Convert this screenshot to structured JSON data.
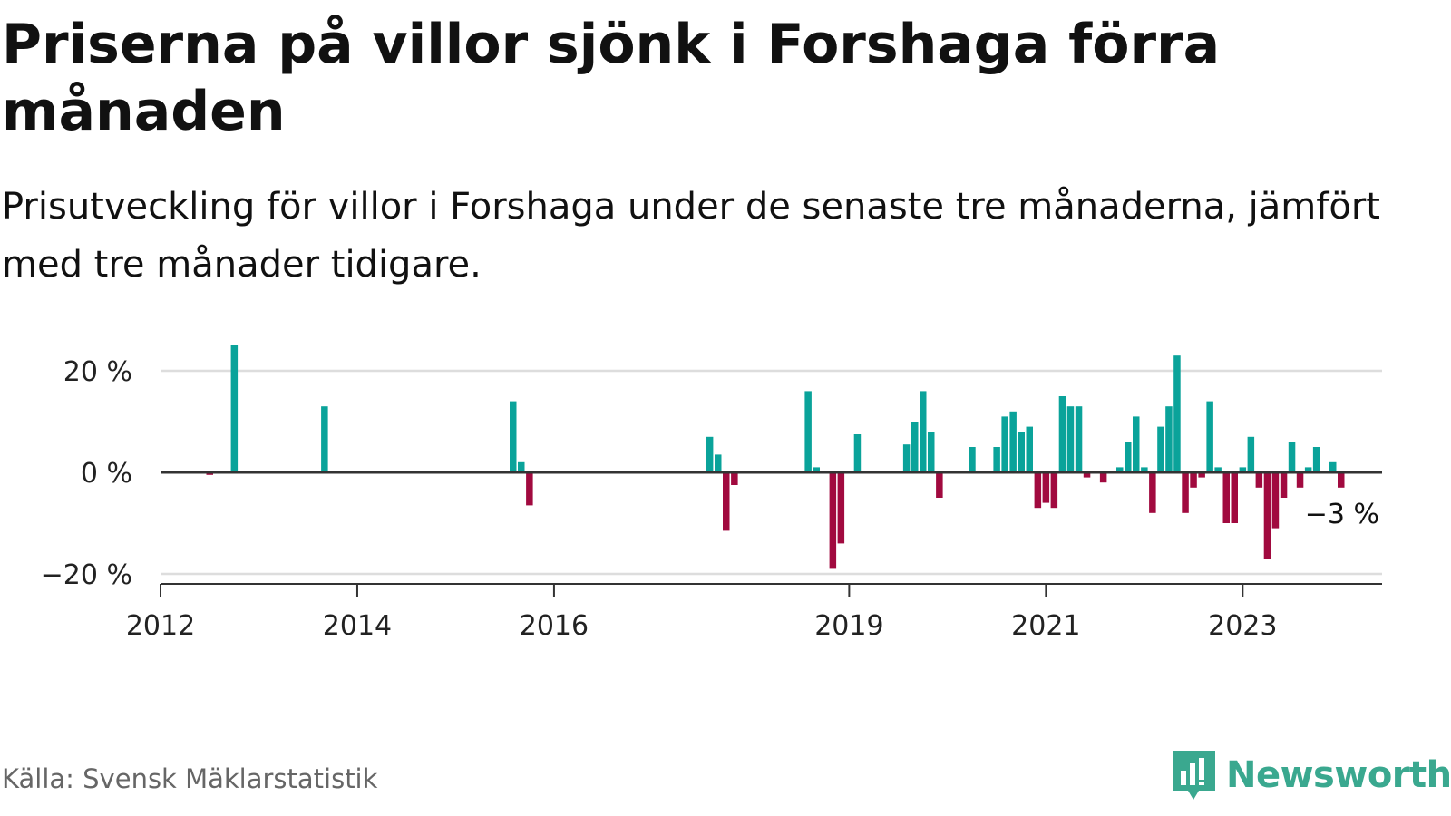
{
  "header": {
    "title": "Priserna på villor sjönk i Forshaga förra månaden",
    "subtitle": "Prisutveckling för villor i Forshaga under de senaste tre månaderna, jämfört med tre månader tidigare."
  },
  "footer": {
    "source": "Källa: Svensk Mäklarstatistik",
    "brand": "Newsworthy"
  },
  "colors": {
    "positive": "#0aa39a",
    "negative": "#a10a3f",
    "baseline": "#333333",
    "grid": "#dddddd",
    "brand": "#3aa88f"
  },
  "chart_data": {
    "type": "bar",
    "ylim": [
      -22,
      24
    ],
    "yticks": [
      {
        "value": 20,
        "label": "20 %"
      },
      {
        "value": 0,
        "label": "0 %"
      },
      {
        "value": -20,
        "label": "−20 %"
      }
    ],
    "xticks": [
      {
        "date": "2012-01",
        "label": "2012"
      },
      {
        "date": "2014-01",
        "label": "2014"
      },
      {
        "date": "2016-01",
        "label": "2016"
      },
      {
        "date": "2019-01",
        "label": "2019"
      },
      {
        "date": "2021-01",
        "label": "2021"
      },
      {
        "date": "2023-01",
        "label": "2023"
      }
    ],
    "x_range": [
      "2012-01",
      "2024-06"
    ],
    "last_value_label": "−3 %",
    "points": [
      {
        "date": "2012-07",
        "value": -0.5
      },
      {
        "date": "2012-10",
        "value": 25
      },
      {
        "date": "2013-09",
        "value": 13
      },
      {
        "date": "2015-08",
        "value": 14
      },
      {
        "date": "2015-09",
        "value": 2
      },
      {
        "date": "2015-10",
        "value": -6.5
      },
      {
        "date": "2017-08",
        "value": 7
      },
      {
        "date": "2017-09",
        "value": 3.5
      },
      {
        "date": "2017-10",
        "value": -11.5
      },
      {
        "date": "2017-11",
        "value": -2.5
      },
      {
        "date": "2018-08",
        "value": 16
      },
      {
        "date": "2018-09",
        "value": 1
      },
      {
        "date": "2018-11",
        "value": -19
      },
      {
        "date": "2018-12",
        "value": -14
      },
      {
        "date": "2019-02",
        "value": 7.5
      },
      {
        "date": "2019-08",
        "value": 5.5
      },
      {
        "date": "2019-09",
        "value": 10
      },
      {
        "date": "2019-10",
        "value": 16
      },
      {
        "date": "2019-11",
        "value": 8
      },
      {
        "date": "2019-12",
        "value": -5
      },
      {
        "date": "2020-04",
        "value": 5
      },
      {
        "date": "2020-07",
        "value": 5
      },
      {
        "date": "2020-08",
        "value": 11
      },
      {
        "date": "2020-09",
        "value": 12
      },
      {
        "date": "2020-10",
        "value": 8
      },
      {
        "date": "2020-11",
        "value": 9
      },
      {
        "date": "2020-12",
        "value": -7
      },
      {
        "date": "2021-01",
        "value": -6
      },
      {
        "date": "2021-02",
        "value": -7
      },
      {
        "date": "2021-03",
        "value": 15
      },
      {
        "date": "2021-04",
        "value": 13
      },
      {
        "date": "2021-05",
        "value": 13
      },
      {
        "date": "2021-06",
        "value": -1
      },
      {
        "date": "2021-08",
        "value": -2
      },
      {
        "date": "2021-10",
        "value": 1
      },
      {
        "date": "2021-11",
        "value": 6
      },
      {
        "date": "2021-12",
        "value": 11
      },
      {
        "date": "2022-01",
        "value": 1
      },
      {
        "date": "2022-02",
        "value": -8
      },
      {
        "date": "2022-03",
        "value": 9
      },
      {
        "date": "2022-04",
        "value": 13
      },
      {
        "date": "2022-05",
        "value": 23
      },
      {
        "date": "2022-06",
        "value": -8
      },
      {
        "date": "2022-07",
        "value": -3
      },
      {
        "date": "2022-08",
        "value": -1
      },
      {
        "date": "2022-09",
        "value": 14
      },
      {
        "date": "2022-10",
        "value": 1
      },
      {
        "date": "2022-11",
        "value": -10
      },
      {
        "date": "2022-12",
        "value": -10
      },
      {
        "date": "2023-01",
        "value": 1
      },
      {
        "date": "2023-02",
        "value": 7
      },
      {
        "date": "2023-03",
        "value": -3
      },
      {
        "date": "2023-04",
        "value": -17
      },
      {
        "date": "2023-05",
        "value": -11
      },
      {
        "date": "2023-06",
        "value": -5
      },
      {
        "date": "2023-07",
        "value": 6
      },
      {
        "date": "2023-08",
        "value": -3
      },
      {
        "date": "2023-09",
        "value": 1
      },
      {
        "date": "2023-10",
        "value": 5
      },
      {
        "date": "2023-12",
        "value": 2
      },
      {
        "date": "2024-01",
        "value": -3
      }
    ]
  }
}
